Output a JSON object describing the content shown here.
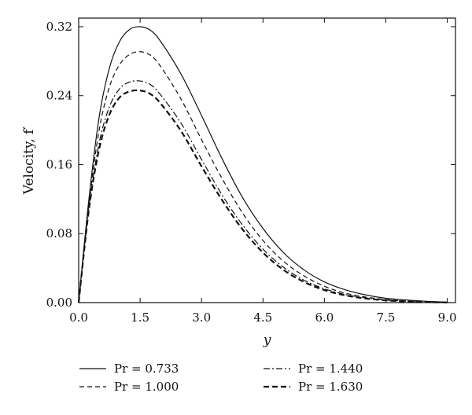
{
  "chart_data": {
    "type": "line",
    "title": "",
    "xlabel": "y",
    "ylabel": "Velocity, f′",
    "xlim": [
      0,
      9.2
    ],
    "ylim": [
      0,
      0.33
    ],
    "xticks": [
      0,
      1.5,
      3,
      4.5,
      6,
      7.5,
      9
    ],
    "xtick_labels": [
      "0.0",
      "1.5",
      "3.0",
      "4.5",
      "6.0",
      "7.5",
      "9.0"
    ],
    "yticks": [
      0,
      0.08,
      0.16,
      0.24,
      0.32
    ],
    "ytick_labels": [
      "0.00",
      "0.08",
      "0.16",
      "0.24",
      "0.32"
    ],
    "grid": false,
    "legend": "bottom",
    "series": [
      {
        "name": "Pr = 0.733",
        "style": "solid",
        "x": [
          0,
          0.25,
          0.5,
          0.75,
          1.0,
          1.25,
          1.5,
          1.75,
          2.0,
          2.5,
          3.0,
          3.5,
          4.0,
          4.5,
          5.0,
          5.5,
          6.0,
          6.5,
          7.0,
          7.5,
          8.0,
          8.5,
          9.0
        ],
        "y": [
          0,
          0.12,
          0.215,
          0.272,
          0.303,
          0.317,
          0.32,
          0.316,
          0.303,
          0.265,
          0.217,
          0.167,
          0.122,
          0.086,
          0.058,
          0.038,
          0.024,
          0.015,
          0.009,
          0.005,
          0.003,
          0.0015,
          0.0005
        ]
      },
      {
        "name": "Pr = 1.000",
        "style": "dashed",
        "x": [
          0,
          0.25,
          0.5,
          0.75,
          1.0,
          1.25,
          1.5,
          1.75,
          2.0,
          2.5,
          3.0,
          3.5,
          4.0,
          4.5,
          5.0,
          5.5,
          6.0,
          6.5,
          7.0,
          7.5,
          8.0,
          8.5,
          9.0
        ],
        "y": [
          0,
          0.115,
          0.2,
          0.25,
          0.276,
          0.288,
          0.291,
          0.287,
          0.274,
          0.236,
          0.189,
          0.144,
          0.104,
          0.072,
          0.048,
          0.031,
          0.019,
          0.011,
          0.0065,
          0.0035,
          0.0018,
          0.0008,
          0.0002
        ]
      },
      {
        "name": "Pr = 1.440",
        "style": "dashdot",
        "x": [
          0,
          0.25,
          0.5,
          0.75,
          1.0,
          1.25,
          1.5,
          1.75,
          2.0,
          2.5,
          3.0,
          3.5,
          4.0,
          4.5,
          5.0,
          5.5,
          6.0,
          6.5,
          7.0,
          7.5,
          8.0,
          8.5,
          9.0
        ],
        "y": [
          0,
          0.11,
          0.185,
          0.227,
          0.248,
          0.256,
          0.257,
          0.253,
          0.241,
          0.208,
          0.166,
          0.125,
          0.09,
          0.062,
          0.041,
          0.026,
          0.016,
          0.0095,
          0.0055,
          0.003,
          0.0015,
          0.0007,
          0.0002
        ]
      },
      {
        "name": "Pr = 1.630",
        "style": "bold-dashed",
        "x": [
          0,
          0.25,
          0.5,
          0.75,
          1.0,
          1.25,
          1.5,
          1.75,
          2.0,
          2.5,
          3.0,
          3.5,
          4.0,
          4.5,
          5.0,
          5.5,
          6.0,
          6.5,
          7.0,
          7.5,
          8.0,
          8.5,
          9.0
        ],
        "y": [
          0,
          0.108,
          0.178,
          0.218,
          0.238,
          0.245,
          0.246,
          0.242,
          0.231,
          0.199,
          0.158,
          0.119,
          0.085,
          0.058,
          0.038,
          0.024,
          0.0145,
          0.0085,
          0.0048,
          0.0026,
          0.0013,
          0.0006,
          0.0002
        ]
      }
    ]
  }
}
